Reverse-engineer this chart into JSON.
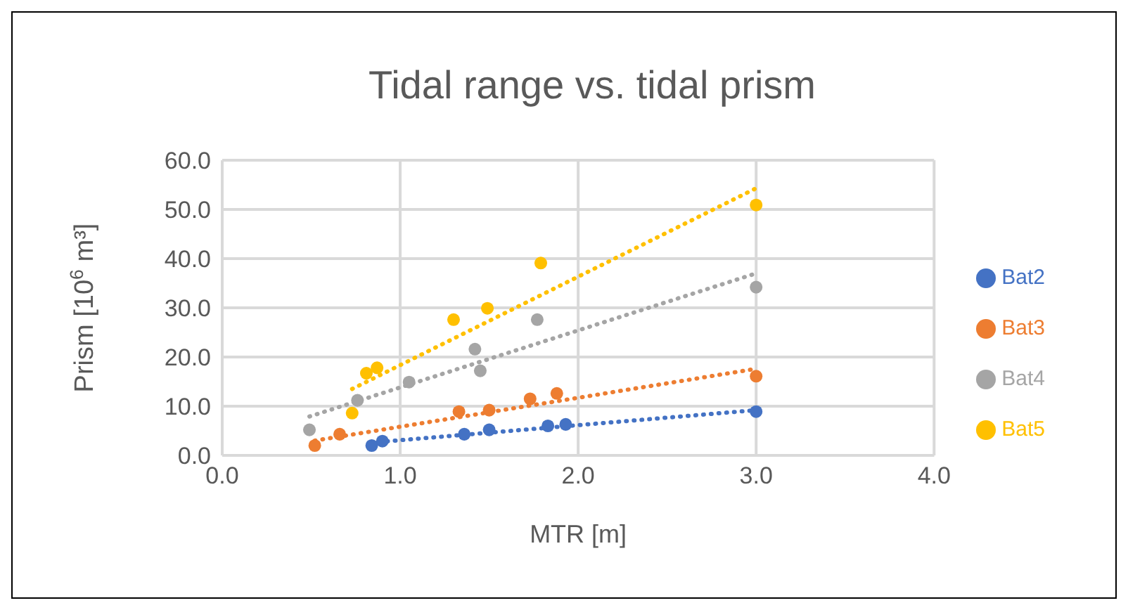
{
  "chart_data": {
    "type": "scatter",
    "title": "Tidal range vs. tidal prism",
    "xlabel": "MTR [m]",
    "ylabel": "Prism [10$^{6}$ m³]",
    "xlim": [
      0,
      4
    ],
    "xticks": [
      {
        "value": 0,
        "label": "0.0"
      },
      {
        "value": 1,
        "label": "1.0"
      },
      {
        "value": 2,
        "label": "2.0"
      },
      {
        "value": 3,
        "label": "3.0"
      },
      {
        "value": 4,
        "label": "4.0"
      }
    ],
    "ylim": [
      0,
      60
    ],
    "yticks": [
      {
        "value": 0,
        "label": "0.0"
      },
      {
        "value": 10,
        "label": "10.0"
      },
      {
        "value": 20,
        "label": "20.0"
      },
      {
        "value": 30,
        "label": "30.0"
      },
      {
        "value": 40,
        "label": "40.0"
      },
      {
        "value": 50,
        "label": "50.0"
      },
      {
        "value": 60,
        "label": "60.0"
      }
    ],
    "grid": true,
    "legend": "right",
    "marker": "circle",
    "series": [
      {
        "name": "Bat2",
        "color": "#4472c4",
        "x": [
          0.84,
          0.9,
          1.36,
          1.5,
          1.83,
          1.93,
          3.0
        ],
        "values": [
          2.0,
          2.9,
          4.3,
          5.2,
          6.0,
          6.3,
          8.9
        ]
      },
      {
        "name": "Bat3",
        "color": "#ed7d31",
        "x": [
          0.52,
          0.66,
          1.33,
          1.5,
          1.73,
          1.88,
          3.0
        ],
        "values": [
          2.0,
          4.3,
          8.9,
          9.2,
          11.5,
          12.6,
          16.1
        ]
      },
      {
        "name": "Bat4",
        "color": "#a5a5a5",
        "x": [
          0.49,
          0.76,
          1.05,
          1.42,
          1.45,
          1.77,
          3.0
        ],
        "values": [
          5.2,
          11.2,
          14.9,
          21.6,
          17.2,
          27.6,
          34.2
        ]
      },
      {
        "name": "Bat5",
        "color": "#ffc000",
        "x": [
          0.73,
          0.81,
          0.87,
          1.3,
          1.49,
          1.79,
          3.0
        ],
        "values": [
          8.6,
          16.7,
          17.8,
          27.6,
          29.9,
          39.1,
          50.9
        ]
      },
      {
        "type": "line",
        "color": "#4472c4",
        "line_style": "dotted",
        "marker": "none",
        "x": [
          0.84,
          3.0
        ],
        "values": [
          2.6,
          9.2
        ]
      },
      {
        "type": "line",
        "color": "#ed7d31",
        "line_style": "dotted",
        "marker": "none",
        "x": [
          0.52,
          3.0
        ],
        "values": [
          3.0,
          17.6
        ]
      },
      {
        "type": "line",
        "color": "#a5a5a5",
        "line_style": "dotted",
        "marker": "none",
        "x": [
          0.49,
          3.0
        ],
        "values": [
          7.9,
          37.0
        ]
      },
      {
        "type": "line",
        "color": "#ffc000",
        "line_style": "dotted",
        "marker": "none",
        "x": [
          0.73,
          3.0
        ],
        "values": [
          13.5,
          54.3
        ]
      }
    ]
  }
}
